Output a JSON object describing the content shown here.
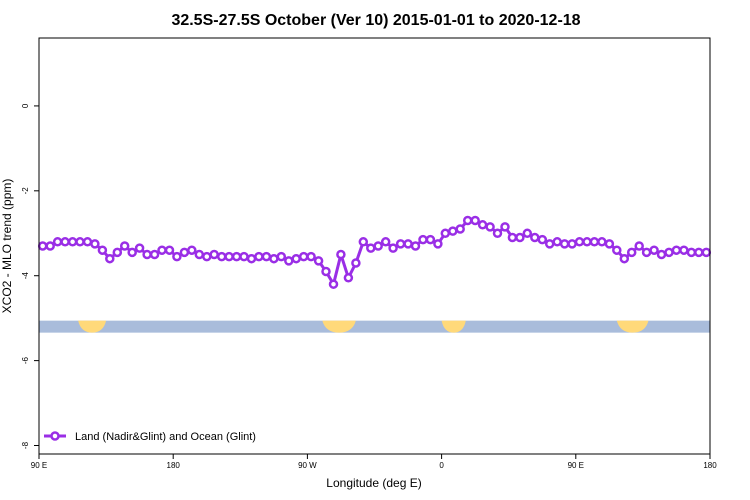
{
  "chart_data": {
    "type": "line",
    "title": "32.5S-27.5S October (Ver 10)   2015-01-01 to 2020-12-18",
    "xlabel": "Longitude (deg E)",
    "ylabel": "XCO2 - MLO trend (ppm)",
    "xlim": [
      90,
      450
    ],
    "ylim": [
      -8.2,
      1.6
    ],
    "x_ticks": [
      {
        "value": 90,
        "label": "90 E"
      },
      {
        "value": 162,
        "label": "180"
      },
      {
        "value": 234,
        "label": "90 W"
      },
      {
        "value": 306,
        "label": "0"
      },
      {
        "value": 378,
        "label": "90 E"
      },
      {
        "value": 450,
        "label": "180"
      }
    ],
    "y_ticks": [
      {
        "value": 0,
        "label": "0"
      },
      {
        "value": -2,
        "label": "-2"
      },
      {
        "value": -4,
        "label": "-4"
      },
      {
        "value": -6,
        "label": "-6"
      },
      {
        "value": -8,
        "label": "-8"
      }
    ],
    "land_ocean_band": {
      "y_center": -5.2,
      "ocean_color": "#a9bcdb",
      "land_color": "#ffd97a",
      "land_segments": [
        [
          111,
          126
        ],
        [
          242,
          260
        ],
        [
          306,
          319
        ],
        [
          400,
          417
        ]
      ]
    },
    "series": [
      {
        "name": "Land (Nadir&Glint) and Ocean (Glint)",
        "color": "#9a2ee6",
        "x": [
          92,
          96,
          100,
          104,
          108,
          112,
          116,
          120,
          124,
          128,
          132,
          136,
          140,
          144,
          148,
          152,
          156,
          160,
          164,
          168,
          172,
          176,
          180,
          184,
          188,
          192,
          196,
          200,
          204,
          208,
          212,
          216,
          220,
          224,
          228,
          232,
          236,
          240,
          244,
          248,
          252,
          256,
          260,
          264,
          268,
          272,
          276,
          280,
          284,
          288,
          292,
          296,
          300,
          304,
          308,
          312,
          316,
          320,
          324,
          328,
          332,
          336,
          340,
          344,
          348,
          352,
          356,
          360,
          364,
          368,
          372,
          376,
          380,
          384,
          388,
          392,
          396,
          400,
          404,
          408,
          412,
          416,
          420,
          424,
          428,
          432,
          436,
          440,
          444,
          448
        ],
        "values": [
          -3.3,
          -3.3,
          -3.2,
          -3.2,
          -3.2,
          -3.2,
          -3.2,
          -3.25,
          -3.4,
          -3.6,
          -3.45,
          -3.3,
          -3.45,
          -3.35,
          -3.5,
          -3.5,
          -3.4,
          -3.4,
          -3.55,
          -3.45,
          -3.4,
          -3.5,
          -3.55,
          -3.5,
          -3.55,
          -3.55,
          -3.55,
          -3.55,
          -3.6,
          -3.55,
          -3.55,
          -3.6,
          -3.55,
          -3.65,
          -3.6,
          -3.55,
          -3.55,
          -3.65,
          -3.9,
          -4.2,
          -3.5,
          -4.05,
          -3.7,
          -3.2,
          -3.35,
          -3.3,
          -3.2,
          -3.35,
          -3.25,
          -3.25,
          -3.3,
          -3.15,
          -3.15,
          -3.25,
          -3.0,
          -2.95,
          -2.9,
          -2.7,
          -2.7,
          -2.8,
          -2.85,
          -3.0,
          -2.85,
          -3.1,
          -3.1,
          -3.0,
          -3.1,
          -3.15,
          -3.25,
          -3.2,
          -3.25,
          -3.25,
          -3.2,
          -3.2,
          -3.2,
          -3.2,
          -3.25,
          -3.4,
          -3.6,
          -3.45,
          -3.3,
          -3.45,
          -3.4,
          -3.5,
          -3.45,
          -3.4,
          -3.4,
          -3.45,
          -3.45,
          -3.45
        ]
      }
    ],
    "legend": {
      "position": "bottom-left"
    }
  }
}
